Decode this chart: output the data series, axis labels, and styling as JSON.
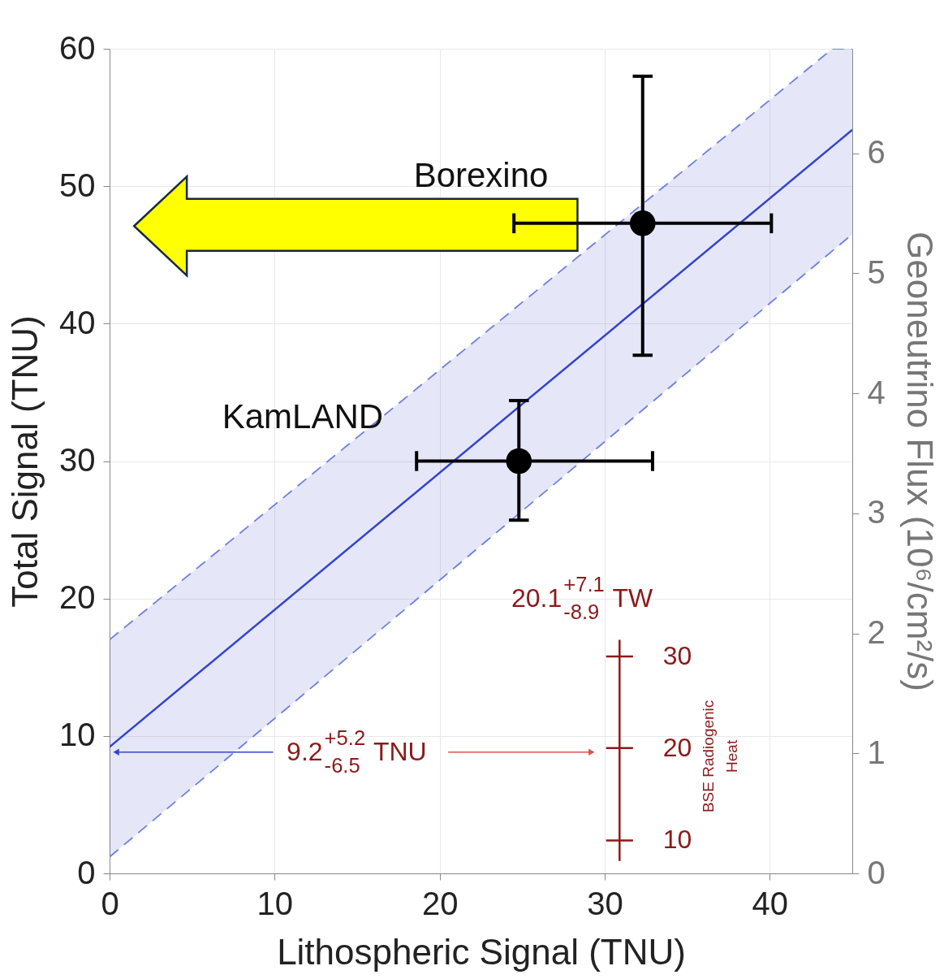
{
  "chart_data": {
    "type": "scatter",
    "xlabel": "Lithospheric Signal (TNU)",
    "ylabel": "Total Signal (TNU)",
    "y2label": "Geoneutrino Flux (10⁶/cm²/s)",
    "xlim": [
      0,
      45
    ],
    "xticks": [
      0,
      10,
      20,
      30,
      40
    ],
    "ylim": [
      0,
      60
    ],
    "yticks": [
      0,
      10,
      20,
      30,
      40,
      50,
      60
    ],
    "y2lim": [
      0,
      6.87
    ],
    "y2ticks": [
      0,
      1,
      2,
      3,
      4,
      5,
      6
    ],
    "grid": true,
    "series": [
      {
        "type": "line",
        "color": "#3344cc",
        "line_style": "solid",
        "x": [
          0,
          43.8,
          45
        ],
        "values": [
          9.2,
          52.9,
          54.1
        ],
        "lower": [
          1.2,
          45.3,
          46.5
        ],
        "upper": [
          17.0,
          60,
          60
        ]
      },
      {
        "type": "line",
        "color": "#6f7fe0",
        "line_style": "dashed",
        "x": [
          0,
          43.8,
          45
        ],
        "values": [
          17.0,
          60,
          60
        ]
      },
      {
        "type": "line",
        "color": "#6f7fe0",
        "line_style": "dashed",
        "x": [
          0,
          43.8,
          45
        ],
        "values": [
          1.2,
          45.3,
          46.5
        ]
      },
      {
        "type": "line",
        "color": "#8b1a1a",
        "line_style": "solid",
        "x": [
          30.9,
          30.9
        ],
        "values": [
          0.9,
          17.0
        ]
      },
      {
        "color": "#000000",
        "marker": "circle",
        "x": [
          24.8,
          32.3
        ],
        "values": [
          30.0,
          47.3
        ],
        "errors": [
          [
            25.7,
            34.4
          ],
          [
            37.7,
            58.0
          ]
        ],
        "xerrors": [
          [
            18.6,
            32.9
          ],
          7.8
        ]
      }
    ],
    "annotations": [
      "Borexino",
      "KamLAND",
      "9.2$^{+5.2}$$_{-6.5}$ TNU",
      "20.1$^{+7.1}$$_{-8.9}$ TW",
      "30",
      "20",
      "10",
      "BSE Radiogenic",
      "Heat"
    ]
  }
}
